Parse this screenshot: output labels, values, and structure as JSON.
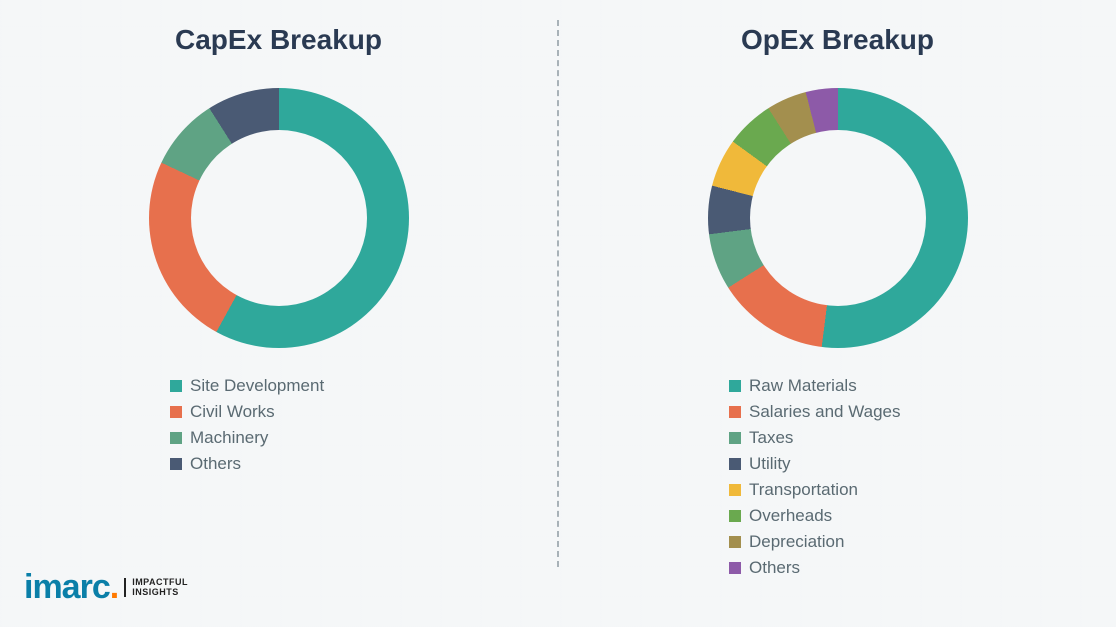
{
  "background_color": "#f5f7f8",
  "divider_color": "#a8b2b8",
  "title_color": "#2a3a52",
  "title_fontsize": 28,
  "legend_fontsize": 17,
  "legend_color": "#5a6a72",
  "capex": {
    "title": "CapEx Breakup",
    "type": "donut",
    "inner_radius_pct": 68,
    "start_angle_deg": 0,
    "segments": [
      {
        "label": "Site Development",
        "value": 58,
        "color": "#2fa89b"
      },
      {
        "label": "Civil Works",
        "value": 24,
        "color": "#e7704d"
      },
      {
        "label": "Machinery",
        "value": 9,
        "color": "#5fa384"
      },
      {
        "label": "Others",
        "value": 9,
        "color": "#4a5a74"
      }
    ]
  },
  "opex": {
    "title": "OpEx Breakup",
    "type": "donut",
    "inner_radius_pct": 68,
    "start_angle_deg": 0,
    "segments": [
      {
        "label": "Raw Materials",
        "value": 52,
        "color": "#2fa89b"
      },
      {
        "label": "Salaries and Wages",
        "value": 14,
        "color": "#e7704d"
      },
      {
        "label": "Taxes",
        "value": 7,
        "color": "#5fa384"
      },
      {
        "label": "Utility",
        "value": 6,
        "color": "#4a5a74"
      },
      {
        "label": "Transportation",
        "value": 6,
        "color": "#f0b93a"
      },
      {
        "label": "Overheads",
        "value": 6,
        "color": "#6aa94f"
      },
      {
        "label": "Depreciation",
        "value": 5,
        "color": "#a38f4e"
      },
      {
        "label": "Others",
        "value": 4,
        "color": "#8d5aa8"
      }
    ]
  },
  "logo": {
    "brand": "imarc",
    "tagline_line1": "IMPACTFUL",
    "tagline_line2": "INSIGHTS",
    "brand_color": "#0a7fa8",
    "dot_color": "#ff7a00"
  }
}
